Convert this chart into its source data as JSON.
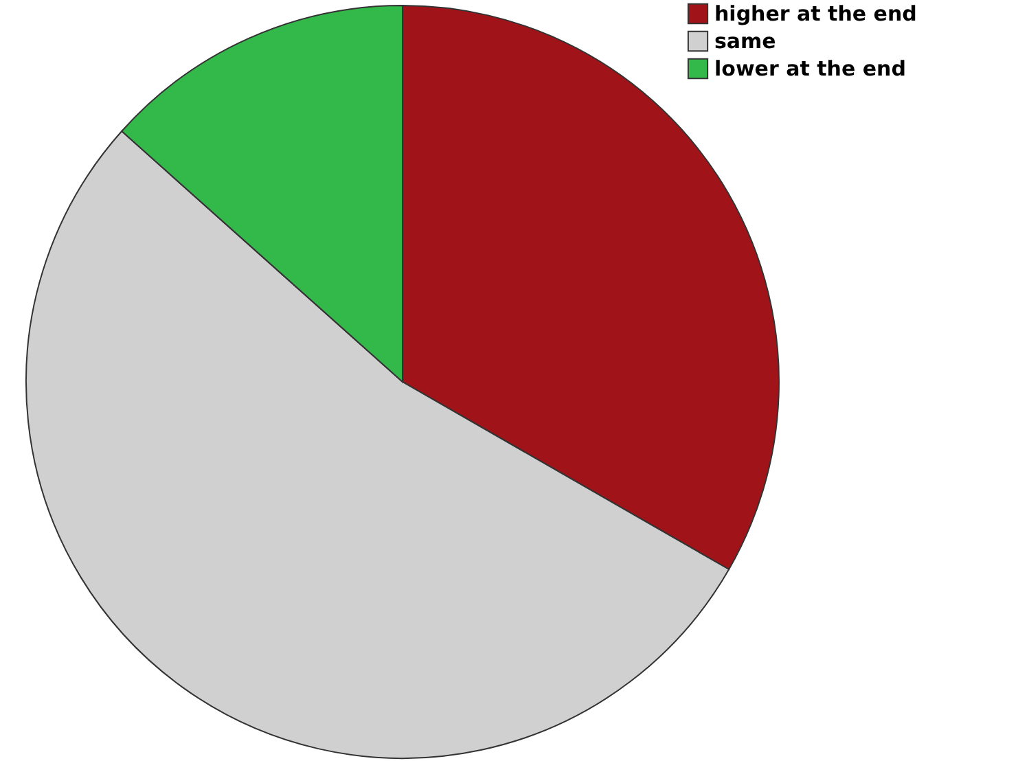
{
  "chart_data": {
    "type": "pie",
    "categories": [
      "higher at the end",
      "same",
      "lower at the end"
    ],
    "values": [
      33.3,
      53.3,
      13.4
    ],
    "colors": [
      "#a01419",
      "#d0d0d0",
      "#33b84a"
    ],
    "legend": "top right"
  }
}
